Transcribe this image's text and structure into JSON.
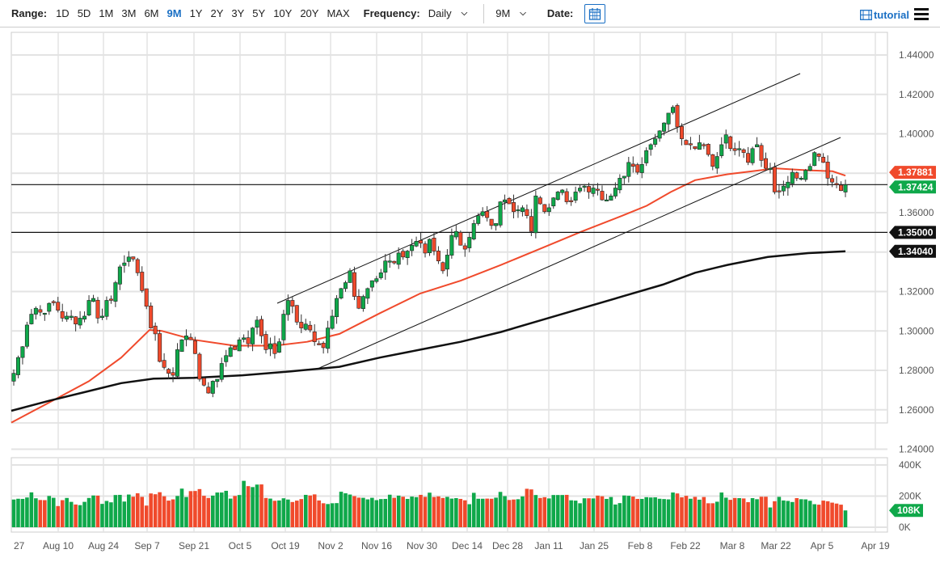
{
  "toolbar": {
    "range_label": "Range:",
    "ranges": [
      "1D",
      "5D",
      "1M",
      "3M",
      "6M",
      "9M",
      "1Y",
      "2Y",
      "3Y",
      "5Y",
      "10Y",
      "20Y",
      "MAX"
    ],
    "active_range": "9M",
    "frequency_label": "Frequency:",
    "frequency_value": "Daily",
    "period_value": "9M",
    "date_label": "Date:",
    "tutorial_label": "tutorial"
  },
  "colors": {
    "up": "#0fa84a",
    "down": "#f04a2c",
    "ma_fast": "#f04a2c",
    "ma_slow": "#111111",
    "grid": "#e3e3e3",
    "accent": "#1a6fc4"
  },
  "chart_data": {
    "type": "candlestick",
    "title": "",
    "price_axis": {
      "ticks": [
        "1.44000",
        "1.42000",
        "1.40000",
        "1.38000",
        "1.36000",
        "1.34000",
        "1.32000",
        "1.30000",
        "1.28000",
        "1.26000",
        "1.24000"
      ],
      "range": [
        1.24,
        1.44
      ]
    },
    "volume_axis": {
      "ticks": [
        "400K",
        "200K",
        "0K"
      ],
      "range": [
        0,
        400000
      ]
    },
    "x_tick_labels": [
      "27",
      "Aug 10",
      "Aug 24",
      "Sep 7",
      "Sep 21",
      "Oct 5",
      "Oct 19",
      "Nov 2",
      "Nov 16",
      "Nov 30",
      "Dec 14",
      "Dec 28",
      "Jan 11",
      "Jan 25",
      "Feb 8",
      "Feb 22",
      "Mar 8",
      "Mar 22",
      "Apr 5",
      "Apr 19"
    ],
    "price_labels": [
      {
        "value": "1.37881",
        "name": "ma-fast-last",
        "color": "#f04a2c"
      },
      {
        "value": "1.37424",
        "name": "last-price",
        "color": "#0fa84a"
      },
      {
        "value": "1.35000",
        "name": "horizontal-level",
        "color": "#111111"
      },
      {
        "value": "1.34040",
        "name": "ma-slow-last",
        "color": "#111111"
      }
    ],
    "volume_label": {
      "value": "108K",
      "color": "#0fa84a"
    },
    "horizontal_lines": [
      1.37424,
      1.35
    ],
    "trendlines": [
      {
        "from": [
          343,
          375
        ],
        "to": [
          990,
          91
        ]
      },
      {
        "from": [
          393,
          456
        ],
        "to": [
          1040,
          170
        ]
      }
    ],
    "closes": [
      1.2785,
      1.2865,
      1.292,
      1.303,
      1.3085,
      1.3115,
      1.3095,
      1.309,
      1.314,
      1.3145,
      1.3105,
      1.3065,
      1.3075,
      1.3075,
      1.3035,
      1.3065,
      1.3075,
      1.3155,
      1.3165,
      1.3065,
      1.3075,
      1.3155,
      1.3155,
      1.3245,
      1.3325,
      1.3345,
      1.3375,
      1.3365,
      1.3295,
      1.3205,
      1.3125,
      1.3015,
      1.2985,
      1.2845,
      1.2815,
      1.2785,
      1.2775,
      1.2905,
      1.2955,
      1.2975,
      1.2955,
      1.2885,
      1.2755,
      1.2725,
      1.2685,
      1.2745,
      1.2755,
      1.2835,
      1.2875,
      1.2915,
      1.2905,
      1.2955,
      1.2965,
      1.2935,
      1.3015,
      1.3055,
      1.2975,
      1.2905,
      1.2935,
      1.2885,
      1.2945,
      1.3085,
      1.3155,
      1.3125,
      1.3045,
      1.3015,
      1.3035,
      1.3005,
      1.2945,
      1.2935,
      1.2915,
      1.3015,
      1.3075,
      1.3165,
      1.3215,
      1.3245,
      1.3305,
      1.3175,
      1.3115,
      1.3175,
      1.3215,
      1.3255,
      1.3265,
      1.3295,
      1.3355,
      1.3355,
      1.3345,
      1.3395,
      1.3375,
      1.3405,
      1.3435,
      1.3455,
      1.3445,
      1.3395,
      1.3465,
      1.3405,
      1.3355,
      1.3305,
      1.3385,
      1.3485,
      1.3505,
      1.3435,
      1.3415,
      1.3475,
      1.3545,
      1.3585,
      1.3605,
      1.3575,
      1.3535,
      1.3545,
      1.3655,
      1.3665,
      1.3645,
      1.3605,
      1.3615,
      1.3625,
      1.3585,
      1.3505,
      1.3685,
      1.3645,
      1.3605,
      1.3625,
      1.3675,
      1.3705,
      1.3715,
      1.3655,
      1.3655,
      1.3705,
      1.3725,
      1.3735,
      1.3705,
      1.3725,
      1.3715,
      1.3665,
      1.3665,
      1.3685,
      1.3725,
      1.3775,
      1.3785,
      1.3855,
      1.3835,
      1.3805,
      1.3845,
      1.3915,
      1.3945,
      1.3975,
      1.4015,
      1.4055,
      1.4105,
      1.4135,
      1.4035,
      1.3975,
      1.3945,
      1.3945,
      1.3925,
      1.3955,
      1.3945,
      1.3895,
      1.3835,
      1.3885,
      1.3945,
      1.3995,
      1.3925,
      1.3915,
      1.3925,
      1.3905,
      1.3855,
      1.3925,
      1.3945,
      1.3865,
      1.3825,
      1.3825,
      1.3705,
      1.3705,
      1.3735,
      1.3755,
      1.3805,
      1.3775,
      1.3775,
      1.3815,
      1.3835,
      1.3905,
      1.3885,
      1.3855,
      1.3775,
      1.3755,
      1.3745,
      1.3712,
      1.3742
    ],
    "volumes_k": [
      178,
      183,
      182,
      191,
      224,
      186,
      175,
      174,
      201,
      189,
      136,
      174,
      188,
      163,
      146,
      142,
      163,
      188,
      204,
      203,
      150,
      169,
      160,
      207,
      208,
      165,
      210,
      196,
      218,
      195,
      139,
      217,
      212,
      225,
      199,
      171,
      179,
      201,
      248,
      194,
      232,
      233,
      245,
      202,
      188,
      203,
      223,
      223,
      234,
      184,
      201,
      207,
      298,
      264,
      258,
      274,
      275,
      188,
      184,
      170,
      172,
      186,
      178,
      162,
      171,
      181,
      208,
      204,
      211,
      172,
      154,
      149,
      154,
      155,
      228,
      218,
      210,
      200,
      190,
      189,
      179,
      189,
      174,
      181,
      182,
      209,
      189,
      203,
      196,
      182,
      197,
      193,
      208,
      195,
      222,
      194,
      198,
      188,
      195,
      184,
      187,
      182,
      173,
      148,
      221,
      183,
      183,
      184,
      183,
      190,
      227,
      200,
      175,
      178,
      180,
      198,
      247,
      243,
      207,
      188,
      193,
      185,
      207,
      207,
      207,
      208,
      173,
      171,
      154,
      186,
      186,
      185,
      203,
      199,
      182,
      194,
      146,
      155,
      204,
      202,
      197,
      182,
      182,
      193,
      191,
      192,
      183,
      181,
      179,
      223,
      217,
      192,
      202,
      183,
      195,
      177,
      194,
      154,
      154,
      164,
      223,
      190,
      176,
      188,
      187,
      185,
      161,
      187,
      180,
      196,
      196,
      127,
      167,
      195,
      172,
      169,
      162,
      187,
      180,
      179,
      170,
      148,
      145,
      171,
      167,
      158,
      152,
      145,
      108
    ]
  }
}
